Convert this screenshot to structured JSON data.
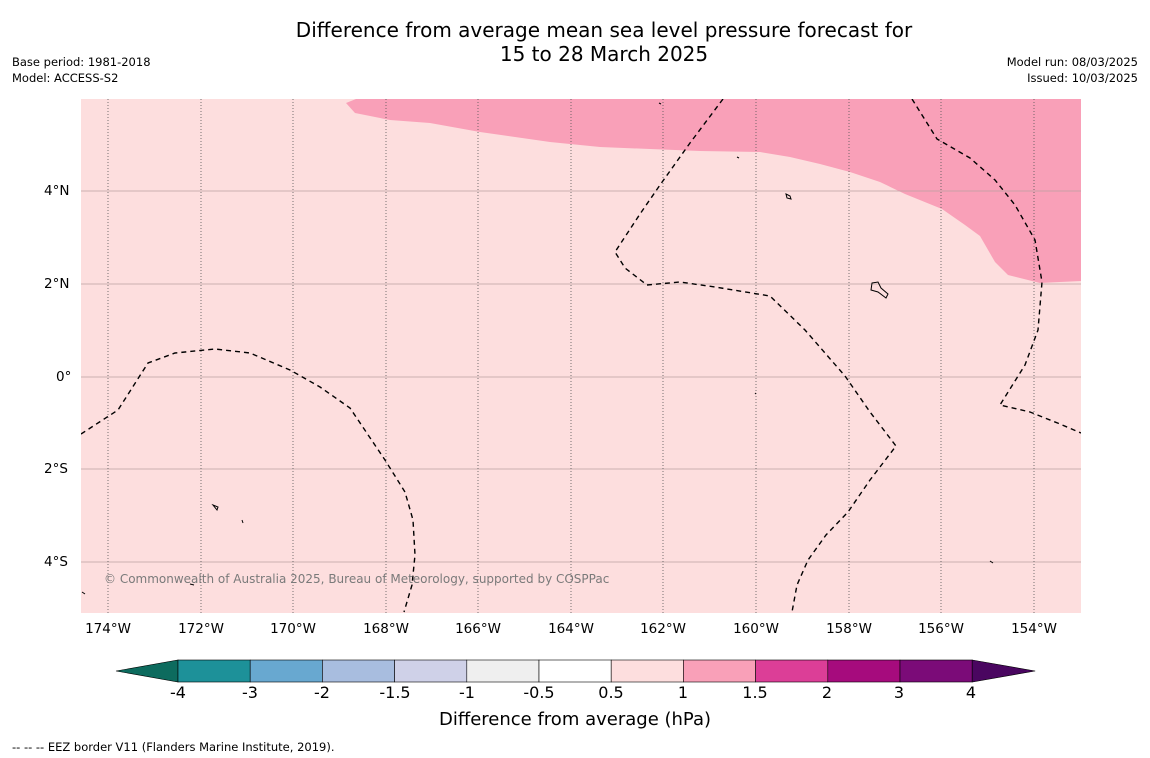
{
  "title_line1": "Difference from average mean sea level pressure forecast for",
  "title_line2": "15 to 28 March 2025",
  "meta_left": {
    "base_period": "Base period: 1981-2018",
    "model": "Model: ACCESS-S2"
  },
  "meta_right": {
    "model_run": "Model run: 08/03/2025",
    "issued": "Issued: 10/03/2025"
  },
  "map": {
    "background_color": "#fddede",
    "anomaly_color": "#f9a0b8",
    "lat_labels": [
      "4°N",
      "2°N",
      "0°",
      "2°S",
      "4°S"
    ],
    "lon_labels": [
      "174°W",
      "172°W",
      "170°W",
      "168°W",
      "166°W",
      "164°W",
      "162°W",
      "160°W",
      "158°W",
      "156°W",
      "154°W"
    ],
    "copyright": "© Commonwealth of Australia 2025, Bureau of Meteorology, supported by COSPPac"
  },
  "colorbar": {
    "labels": [
      "-4",
      "-3",
      "-2",
      "-1.5",
      "-1",
      "-0.5",
      "0.5",
      "1",
      "1.5",
      "2",
      "3",
      "4"
    ],
    "colors": [
      "#0d6b5e",
      "#1d9199",
      "#68a8d0",
      "#a8bddf",
      "#cfd1e8",
      "#efefef",
      "#ffffff",
      "#fddede",
      "#f9a0b8",
      "#dc3e97",
      "#a60b7d",
      "#7b0b78",
      "#4a0660"
    ],
    "title": "Difference from average (hPa)"
  },
  "footer": "--  --  -- EEZ border V11 (Flanders Marine Institute, 2019)."
}
